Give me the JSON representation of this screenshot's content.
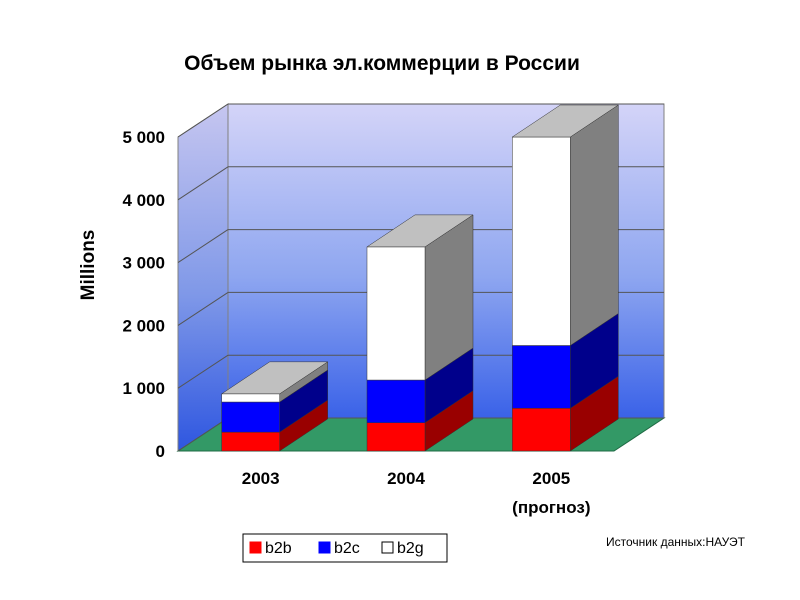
{
  "source_note": "Источник данных:НАУЭТ",
  "chart_data": {
    "type": "bar",
    "stacked": true,
    "three_d": true,
    "title": "Объем рынка эл.коммерции в России",
    "ylabel": "Millions",
    "xlabel": "",
    "categories": [
      [
        "2003"
      ],
      [
        "2004"
      ],
      [
        "2005",
        "(прогноз)"
      ]
    ],
    "ylim": [
      0,
      5000
    ],
    "yticks": [
      0,
      1000,
      2000,
      3000,
      4000,
      5000
    ],
    "ytick_labels": [
      "0",
      "1 000",
      "2 000",
      "3 000",
      "4 000",
      "5 000"
    ],
    "grid": true,
    "legend_position": "bottom",
    "series": [
      {
        "name": "b2b",
        "color": "#ff0000",
        "values": [
          300,
          450,
          680
        ]
      },
      {
        "name": "b2c",
        "color": "#0000ff",
        "values": [
          480,
          680,
          1000
        ]
      },
      {
        "name": "b2g",
        "color": "#ffffff",
        "values": [
          130,
          2120,
          3320
        ]
      }
    ]
  }
}
